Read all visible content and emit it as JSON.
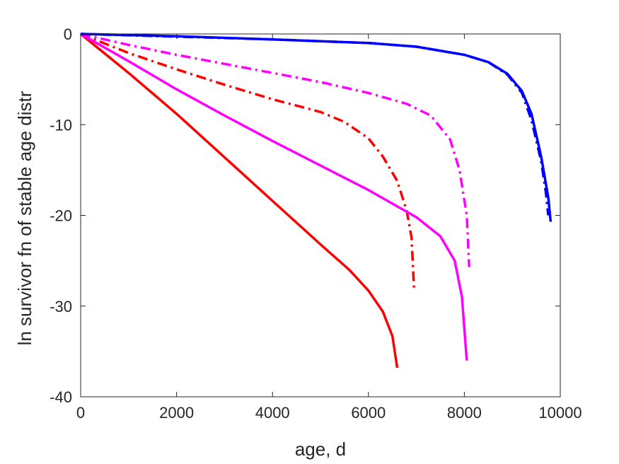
{
  "chart_data": {
    "type": "line",
    "title": "",
    "xlabel": "age, d",
    "ylabel": "ln survivor fn of stable age distr",
    "xlim": [
      0,
      10000
    ],
    "ylim": [
      -40,
      0
    ],
    "xticks": [
      0,
      2000,
      4000,
      6000,
      8000,
      10000
    ],
    "yticks": [
      0,
      -10,
      -20,
      -30,
      -40
    ],
    "grid": false,
    "legend": "none",
    "series": [
      {
        "color": "#ff0000",
        "style": "solid",
        "points": [
          [
            0,
            0
          ],
          [
            1000,
            -4.3
          ],
          [
            2000,
            -8.8
          ],
          [
            3000,
            -13.6
          ],
          [
            4000,
            -18.4
          ],
          [
            5000,
            -23.2
          ],
          [
            5600,
            -26.0
          ],
          [
            6000,
            -28.3
          ],
          [
            6300,
            -30.6
          ],
          [
            6500,
            -33.3
          ],
          [
            6600,
            -36.8
          ]
        ]
      },
      {
        "color": "#ff0000",
        "style": "dashdot",
        "points": [
          [
            0,
            0
          ],
          [
            1000,
            -2.1
          ],
          [
            2000,
            -3.9
          ],
          [
            3000,
            -5.6
          ],
          [
            4000,
            -7.2
          ],
          [
            5000,
            -8.6
          ],
          [
            5500,
            -9.7
          ],
          [
            6000,
            -11.5
          ],
          [
            6300,
            -13.5
          ],
          [
            6600,
            -16.2
          ],
          [
            6800,
            -19.5
          ],
          [
            6900,
            -22.5
          ],
          [
            6950,
            -28.0
          ]
        ]
      },
      {
        "color": "#ff00ff",
        "style": "solid",
        "points": [
          [
            0,
            0
          ],
          [
            1000,
            -3.0
          ],
          [
            2000,
            -6.1
          ],
          [
            3000,
            -9.0
          ],
          [
            4000,
            -11.8
          ],
          [
            5000,
            -14.5
          ],
          [
            6000,
            -17.2
          ],
          [
            7000,
            -20.2
          ],
          [
            7500,
            -22.3
          ],
          [
            7800,
            -25.0
          ],
          [
            7950,
            -29.0
          ],
          [
            8050,
            -36.0
          ]
        ]
      },
      {
        "color": "#ff00ff",
        "style": "dashdot",
        "points": [
          [
            0,
            0
          ],
          [
            1000,
            -1.2
          ],
          [
            2000,
            -2.3
          ],
          [
            3000,
            -3.3
          ],
          [
            4000,
            -4.3
          ],
          [
            5000,
            -5.3
          ],
          [
            6000,
            -6.5
          ],
          [
            6800,
            -7.7
          ],
          [
            7300,
            -9.0
          ],
          [
            7700,
            -11.6
          ],
          [
            7900,
            -15.0
          ],
          [
            8050,
            -20.0
          ],
          [
            8100,
            -25.7
          ]
        ]
      },
      {
        "color": "#0000ff",
        "style": "dashdot",
        "points": [
          [
            0,
            0
          ],
          [
            2000,
            -0.3
          ],
          [
            4000,
            -0.6
          ],
          [
            6000,
            -1.0
          ],
          [
            7000,
            -1.4
          ],
          [
            8000,
            -2.3
          ],
          [
            8500,
            -3.1
          ],
          [
            8900,
            -4.5
          ],
          [
            9200,
            -6.5
          ],
          [
            9400,
            -9.5
          ],
          [
            9600,
            -14.0
          ],
          [
            9700,
            -17.5
          ],
          [
            9750,
            -20.0
          ]
        ]
      },
      {
        "color": "#0000ff",
        "style": "solid",
        "points": [
          [
            0,
            0
          ],
          [
            2000,
            -0.25
          ],
          [
            4000,
            -0.6
          ],
          [
            6000,
            -1.0
          ],
          [
            7000,
            -1.4
          ],
          [
            8000,
            -2.3
          ],
          [
            8500,
            -3.1
          ],
          [
            8900,
            -4.4
          ],
          [
            9200,
            -6.3
          ],
          [
            9400,
            -8.8
          ],
          [
            9600,
            -13.5
          ],
          [
            9750,
            -18.0
          ],
          [
            9800,
            -20.7
          ]
        ]
      }
    ]
  }
}
